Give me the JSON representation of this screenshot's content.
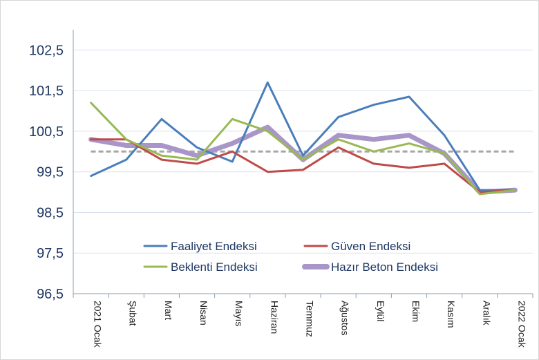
{
  "chart_data": {
    "type": "line",
    "categories": [
      "2021 Ocak",
      "Şubat",
      "Mart",
      "Nisan",
      "Mayıs",
      "Haziran",
      "Temmuz",
      "Ağustos",
      "Eylül",
      "Ekim",
      "Kasım",
      "Aralık",
      "2022 Ocak"
    ],
    "ylim": [
      96.5,
      103.0
    ],
    "yticks": [
      "96,5",
      "97,5",
      "98,5",
      "99,5",
      "100,5",
      "101,5",
      "102,5"
    ],
    "ytick_values": [
      96.5,
      97.5,
      98.5,
      99.5,
      100.5,
      101.5,
      102.5
    ],
    "grid": true,
    "reference_line": 100.0,
    "legend_position": "bottom-center inside plot",
    "series": [
      {
        "name": "Faaliyet Endeksi",
        "color": "#4a7ebb",
        "values": [
          99.4,
          99.8,
          100.8,
          100.1,
          99.75,
          101.7,
          99.9,
          100.85,
          101.15,
          101.35,
          100.4,
          99.05,
          99.05
        ]
      },
      {
        "name": "Güven Endeksi",
        "color": "#be4b48",
        "values": [
          100.3,
          100.3,
          99.8,
          99.7,
          100.0,
          99.5,
          99.55,
          100.1,
          99.7,
          99.6,
          99.7,
          99.0,
          99.05
        ]
      },
      {
        "name": "Beklenti Endeksi",
        "color": "#98b954",
        "values": [
          101.2,
          100.3,
          99.9,
          99.8,
          100.8,
          100.5,
          99.8,
          100.3,
          100.0,
          100.2,
          99.95,
          98.95,
          99.05
        ]
      },
      {
        "name": "Hazır Beton Endeksi",
        "color": "#a996c9",
        "values": [
          100.3,
          100.15,
          100.15,
          99.9,
          100.2,
          100.6,
          99.8,
          100.4,
          100.3,
          100.4,
          99.95,
          99.0,
          99.05
        ]
      }
    ]
  }
}
